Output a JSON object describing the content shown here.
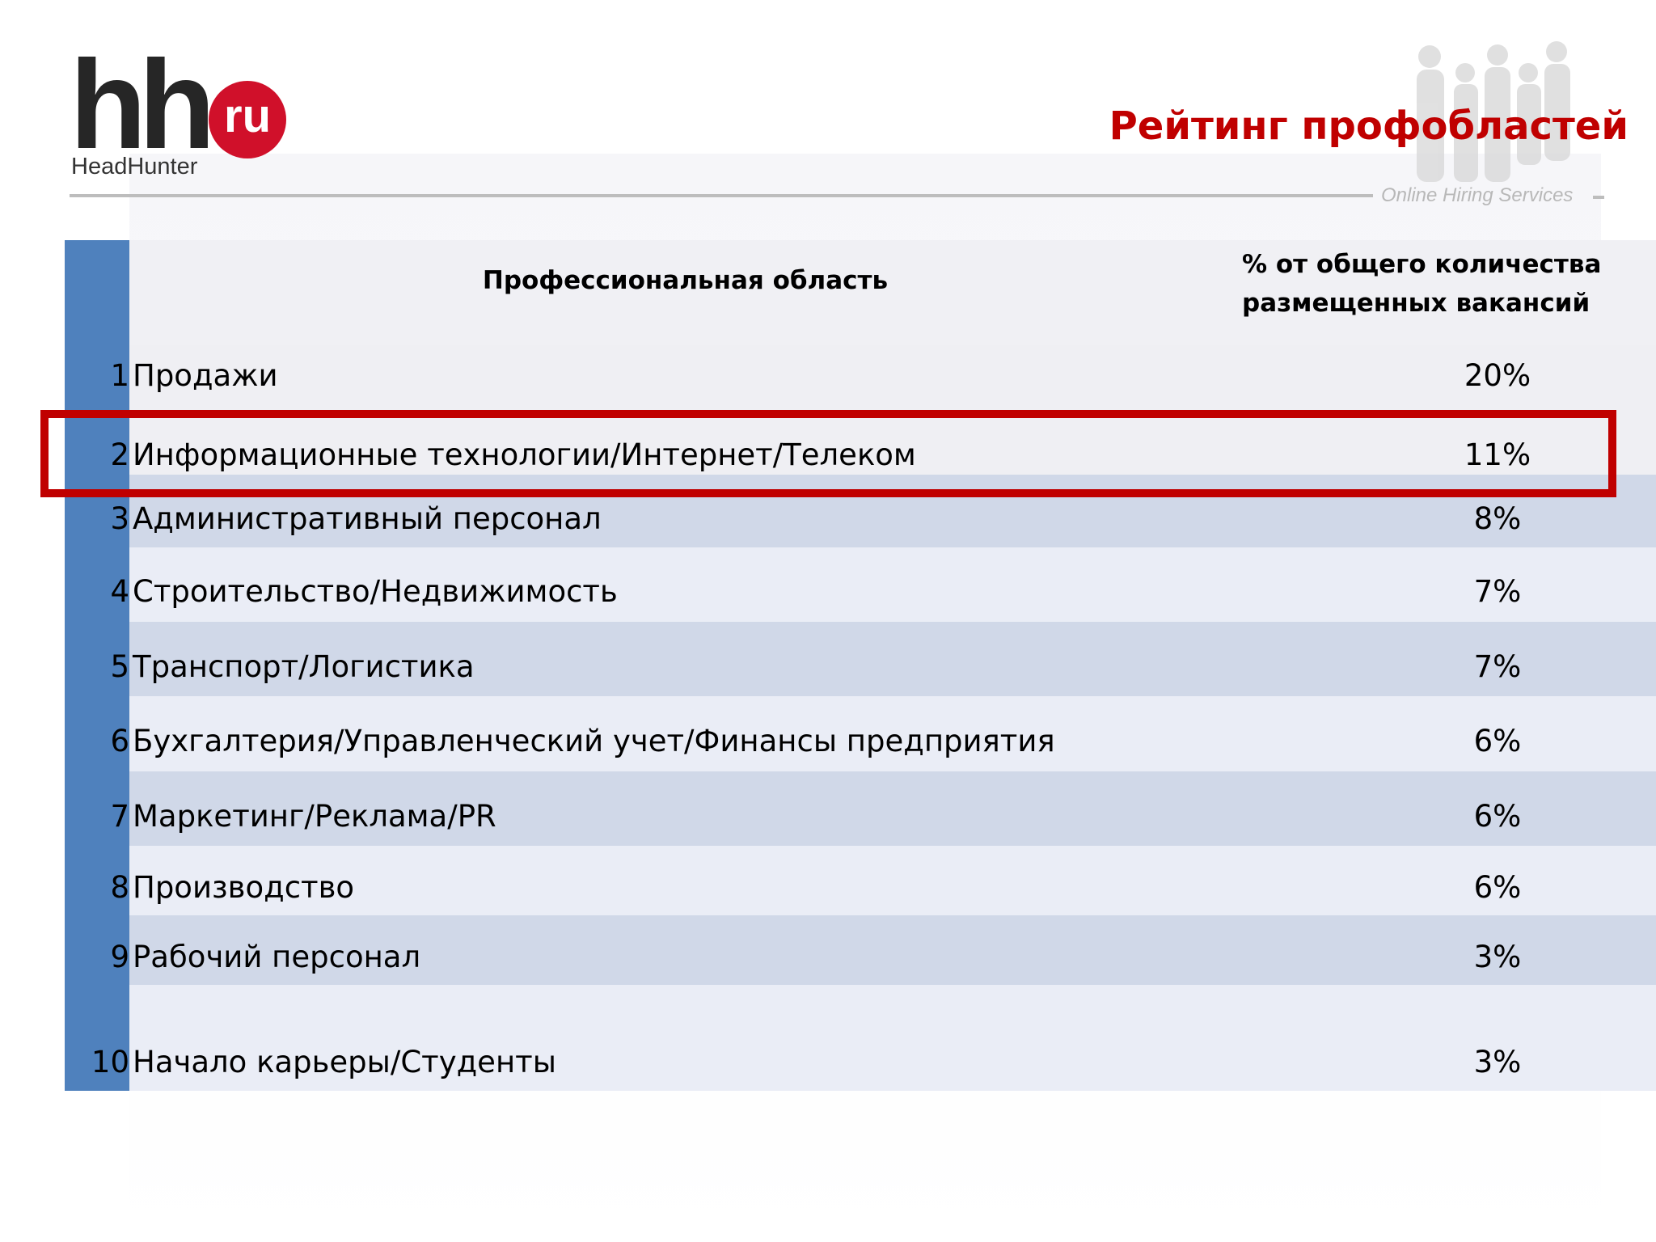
{
  "logo": {
    "mark": "hh",
    "badge": "ru",
    "brand": "HeadHunter"
  },
  "tagline": "Online Hiring Services",
  "title": "Рейтинг профобластей",
  "table": {
    "header_area": "Профессиональная область",
    "header_pct_line1": "% от общего количества",
    "header_pct_line2": "размещенных вакансий",
    "rows": [
      {
        "rank": "1",
        "area": "Продажи",
        "pct": "20%"
      },
      {
        "rank": "2",
        "area": "Информационные технологии/Интернет/Телеком",
        "pct": "11%"
      },
      {
        "rank": "3",
        "area": "Административный персонал",
        "pct": "8%"
      },
      {
        "rank": "4",
        "area": "Строительство/Недвижимость",
        "pct": "7%"
      },
      {
        "rank": "5",
        "area": "Транспорт/Логистика",
        "pct": "7%"
      },
      {
        "rank": "6",
        "area": "Бухгалтерия/Управленческий учет/Финансы предприятия",
        "pct": "6%"
      },
      {
        "rank": "7",
        "area": "Маркетинг/Реклама/PR",
        "pct": "6%"
      },
      {
        "rank": "8",
        "area": "Производство",
        "pct": "6%"
      },
      {
        "rank": "9",
        "area": "Рабочий персонал",
        "pct": "3%"
      },
      {
        "rank": "10",
        "area": "Начало карьеры/Студенты",
        "pct": "3%"
      }
    ]
  },
  "colors": {
    "accent_red": "#c00000",
    "bar_blue": "#4f81bd",
    "row_dark": "#d0d8e8",
    "row_light": "#eaedf6"
  }
}
